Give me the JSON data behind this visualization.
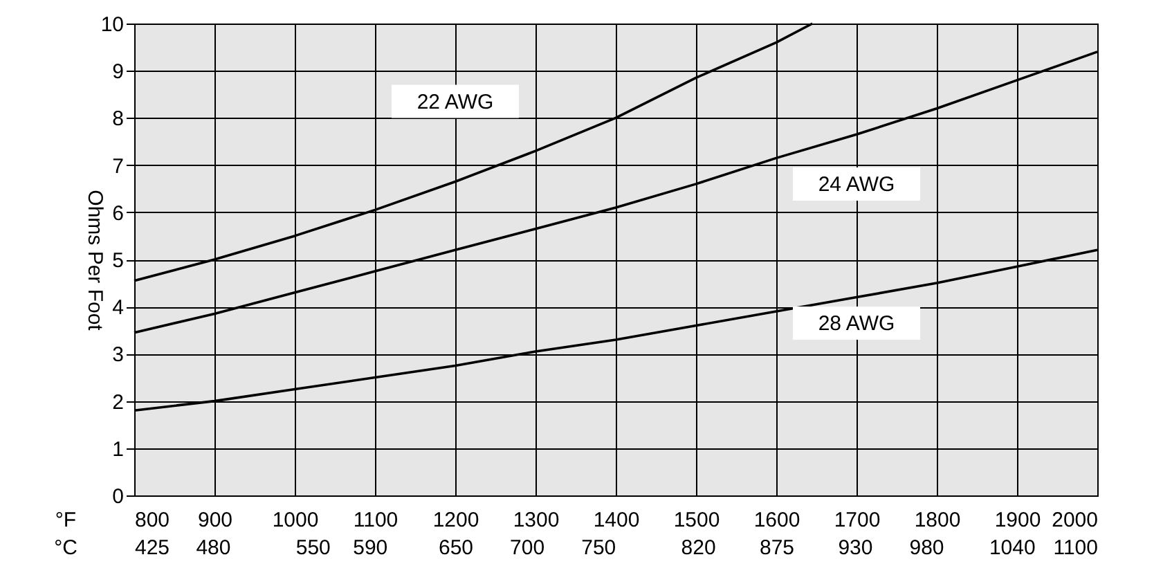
{
  "chart_data": {
    "type": "line",
    "xlabel": "°F",
    "x2label": "°C",
    "ylabel": "Ohms Per Foot",
    "x": [
      800,
      900,
      1000,
      1100,
      1200,
      1300,
      1400,
      1500,
      1600,
      1700,
      1800,
      1900,
      2000
    ],
    "series": [
      {
        "name": "22 AWG",
        "color": "#000000",
        "x": [
          800,
          900,
          1000,
          1100,
          1200,
          1300,
          1400,
          1500,
          1600,
          1645
        ],
        "values": [
          4.55,
          5.0,
          5.5,
          6.05,
          6.65,
          7.3,
          8.0,
          8.85,
          9.6,
          10.0
        ]
      },
      {
        "name": "24 AWG",
        "color": "#000000",
        "values": [
          3.45,
          3.85,
          4.3,
          4.75,
          5.2,
          5.65,
          6.1,
          6.6,
          7.15,
          7.65,
          8.2,
          8.8,
          9.4
        ]
      },
      {
        "name": "28 AWG",
        "color": "#000000",
        "values": [
          1.8,
          2.0,
          2.25,
          2.5,
          2.75,
          3.05,
          3.3,
          3.6,
          3.9,
          4.2,
          4.5,
          4.85,
          5.2
        ]
      }
    ],
    "xlim": [
      800,
      2000
    ],
    "xticks": [
      800,
      900,
      1000,
      1100,
      1200,
      1300,
      1400,
      1500,
      1600,
      1700,
      1800,
      1900,
      2000
    ],
    "x2lim": [
      425,
      1100
    ],
    "x2ticks": [
      425,
      480,
      550,
      590,
      650,
      700,
      750,
      820,
      875,
      930,
      980,
      1040,
      1100
    ],
    "ylim": [
      0,
      10
    ],
    "yticks": [
      0,
      1,
      2,
      3,
      4,
      5,
      6,
      7,
      8,
      9,
      10
    ],
    "grid": true,
    "marker": "none",
    "line_style": "solid"
  }
}
